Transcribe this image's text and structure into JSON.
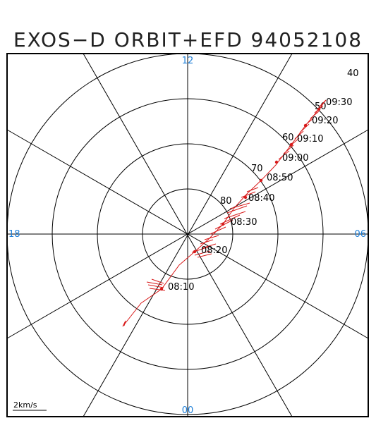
{
  "title": "EXOS−D ORBIT+EFD 94052108",
  "hour_labels": {
    "top": "12",
    "right": "06",
    "bottom": "00",
    "left": "18"
  },
  "latitude_labels": [
    "40",
    "50",
    "60",
    "70",
    "80"
  ],
  "time_labels": [
    "08:10",
    "08:20",
    "08:30",
    "08:40",
    "08:50",
    "09:00",
    "09:10",
    "09:20",
    "09:30"
  ],
  "scale_label": "2km/s",
  "colors": {
    "grid": "#000000",
    "orbit": "#d81a1a",
    "hour_text": "#1e7fd8",
    "text": "#000000"
  }
}
